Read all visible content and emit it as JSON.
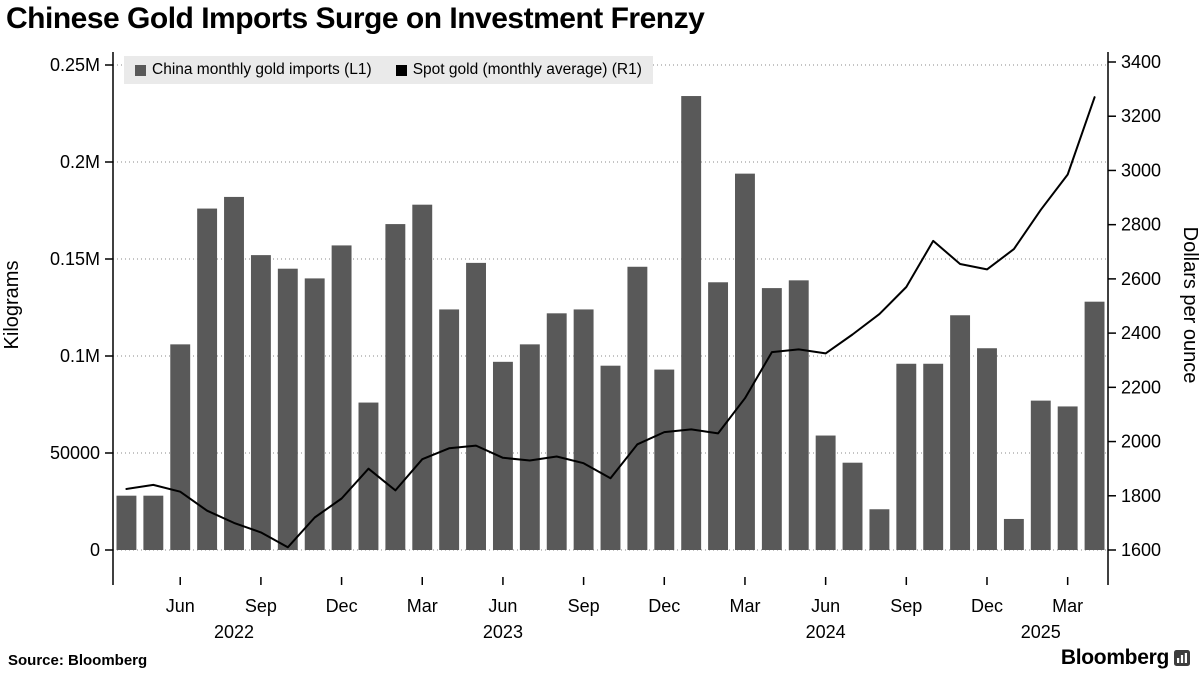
{
  "header": {
    "title": "Chinese Gold Imports Surge on Investment Frenzy"
  },
  "legend": {
    "items": [
      {
        "label": "China monthly gold imports (L1)",
        "color": "#595959"
      },
      {
        "label": "Spot gold (monthly average) (R1)",
        "color": "#000000"
      }
    ]
  },
  "footer": {
    "source": "Source: Bloomberg",
    "logo": "Bloomberg"
  },
  "chart_data": {
    "type": "combo-bar-line",
    "title": "Chinese Gold Imports Surge on Investment Frenzy",
    "grid": "dotted",
    "grid_color": "#8a8a8a",
    "categories": [
      "Apr 2022",
      "May 2022",
      "Jun 2022",
      "Jul 2022",
      "Aug 2022",
      "Sep 2022",
      "Oct 2022",
      "Nov 2022",
      "Dec 2022",
      "Jan 2023",
      "Feb 2023",
      "Mar 2023",
      "Apr 2023",
      "May 2023",
      "Jun 2023",
      "Jul 2023",
      "Aug 2023",
      "Sep 2023",
      "Oct 2023",
      "Nov 2023",
      "Dec 2023",
      "Jan 2024",
      "Feb 2024",
      "Mar 2024",
      "Apr 2024",
      "May 2024",
      "Jun 2024",
      "Jul 2024",
      "Aug 2024",
      "Sep 2024",
      "Oct 2024",
      "Nov 2024",
      "Dec 2024",
      "Jan 2025",
      "Feb 2025",
      "Mar 2025",
      "Apr 2025"
    ],
    "series": [
      {
        "name": "China monthly gold imports (L1)",
        "type": "bar",
        "axis": "left",
        "color": "#595959",
        "values": [
          28000,
          28000,
          106000,
          176000,
          182000,
          152000,
          145000,
          140000,
          157000,
          76000,
          168000,
          178000,
          124000,
          148000,
          97000,
          106000,
          122000,
          124000,
          95000,
          146000,
          93000,
          234000,
          138000,
          194000,
          135000,
          139000,
          59000,
          45000,
          21000,
          96000,
          96000,
          121000,
          104000,
          16000,
          77000,
          74000,
          128000
        ]
      },
      {
        "name": "Spot gold (monthly average) (R1)",
        "type": "line",
        "axis": "right",
        "color": "#000000",
        "values": [
          1825,
          1840,
          1815,
          1745,
          1700,
          1665,
          1610,
          1720,
          1790,
          1900,
          1820,
          1935,
          1975,
          1985,
          1940,
          1930,
          1945,
          1920,
          1865,
          1990,
          2035,
          2045,
          2030,
          2160,
          2330,
          2340,
          2325,
          2395,
          2470,
          2570,
          2740,
          2655,
          2635,
          2710,
          2855,
          2985,
          3270
        ]
      }
    ],
    "left_axis": {
      "title": "Kilograms",
      "min": 0,
      "max": 250000,
      "ticks": [
        {
          "value": 0,
          "label": "0"
        },
        {
          "value": 50000,
          "label": "50000"
        },
        {
          "value": 100000,
          "label": "0.1M"
        },
        {
          "value": 150000,
          "label": "0.15M"
        },
        {
          "value": 200000,
          "label": "0.2M"
        },
        {
          "value": 250000,
          "label": "0.25M"
        }
      ]
    },
    "right_axis": {
      "title": "Dollars per ounce",
      "min": 1600,
      "max": 3400,
      "ticks": [
        1600,
        1800,
        2000,
        2200,
        2400,
        2600,
        2800,
        3000,
        3200,
        3400
      ]
    },
    "x_axis": {
      "month_ticks": [
        {
          "index": 2,
          "label": "Jun"
        },
        {
          "index": 5,
          "label": "Sep"
        },
        {
          "index": 8,
          "label": "Dec"
        },
        {
          "index": 11,
          "label": "Mar"
        },
        {
          "index": 14,
          "label": "Jun"
        },
        {
          "index": 17,
          "label": "Sep"
        },
        {
          "index": 20,
          "label": "Dec"
        },
        {
          "index": 23,
          "label": "Mar"
        },
        {
          "index": 26,
          "label": "Jun"
        },
        {
          "index": 29,
          "label": "Sep"
        },
        {
          "index": 32,
          "label": "Dec"
        },
        {
          "index": 35,
          "label": "Mar"
        }
      ],
      "year_ticks": [
        {
          "index": 4,
          "label": "2022"
        },
        {
          "index": 14,
          "label": "2023"
        },
        {
          "index": 26,
          "label": "2024"
        },
        {
          "index": 34,
          "label": "2025"
        }
      ]
    }
  }
}
